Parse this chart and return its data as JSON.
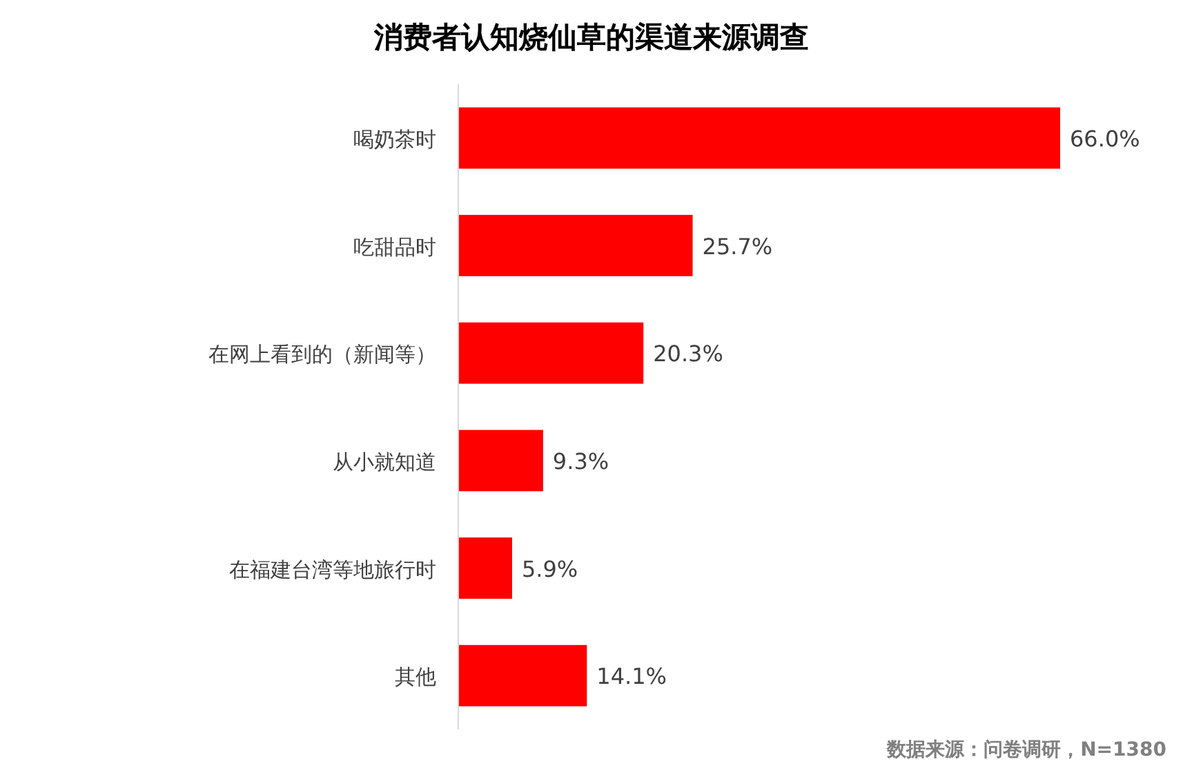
{
  "chart_data": {
    "type": "bar",
    "title": "消费者认知烧仙草的渠道来源调查",
    "orientation": "horizontal",
    "categories": [
      "喝奶茶时",
      "吃甜品时",
      "在网上看到的（新闻等）",
      "从小就知道",
      "在福建台湾等地旅行时",
      "其他"
    ],
    "values": [
      66.0,
      25.7,
      20.3,
      9.3,
      5.9,
      14.1
    ],
    "value_labels": [
      "66.0%",
      "25.7%",
      "20.3%",
      "9.3%",
      "5.9%",
      "14.1%"
    ],
    "color": "#ff0000",
    "annotations": [
      "数据来源：问卷调研，N=1380"
    ]
  }
}
